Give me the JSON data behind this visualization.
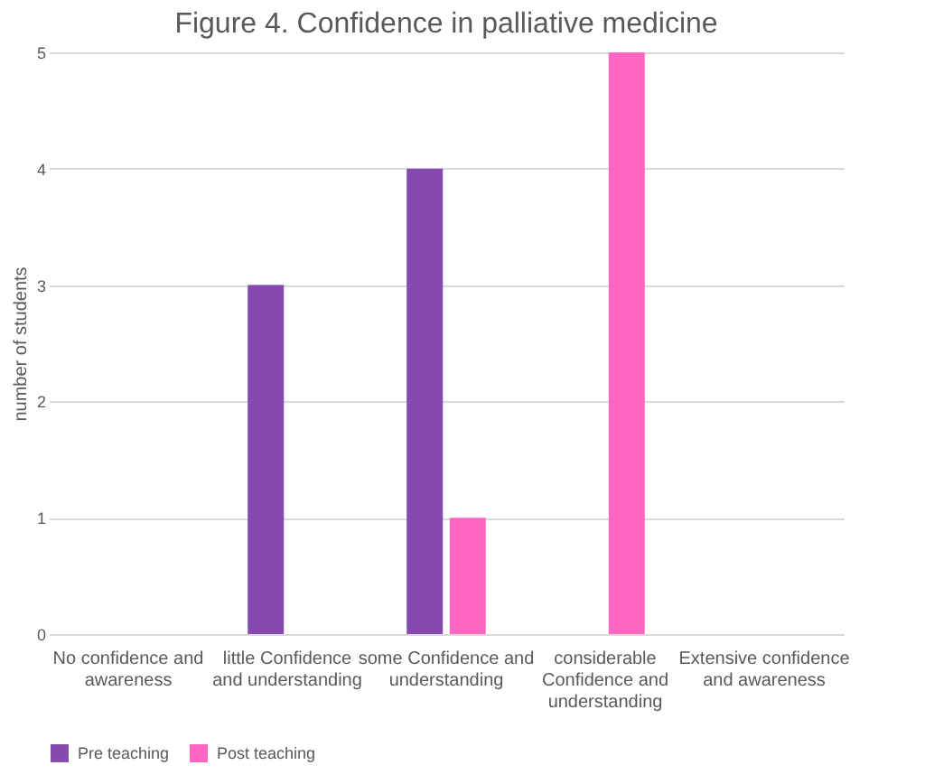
{
  "chart_data": {
    "type": "bar",
    "title": "Figure 4. Confidence in palliative medicine",
    "ylabel": "number of students",
    "categories": [
      "No confidence and awareness",
      "little Confidence and understanding",
      "some Confidence and understanding",
      "considerable Confidence and understanding",
      "Extensive confidence and awareness"
    ],
    "series": [
      {
        "name": "Pre teaching",
        "color": "#8549b0",
        "values": [
          0,
          3,
          4,
          0,
          0
        ]
      },
      {
        "name": "Post teaching",
        "color": "#ff66c4",
        "values": [
          0,
          0,
          1,
          5,
          0
        ]
      }
    ],
    "ylim": [
      0,
      5
    ],
    "yticks": [
      0,
      1,
      2,
      3,
      4,
      5
    ],
    "grid": "y",
    "legend": "bottom"
  }
}
